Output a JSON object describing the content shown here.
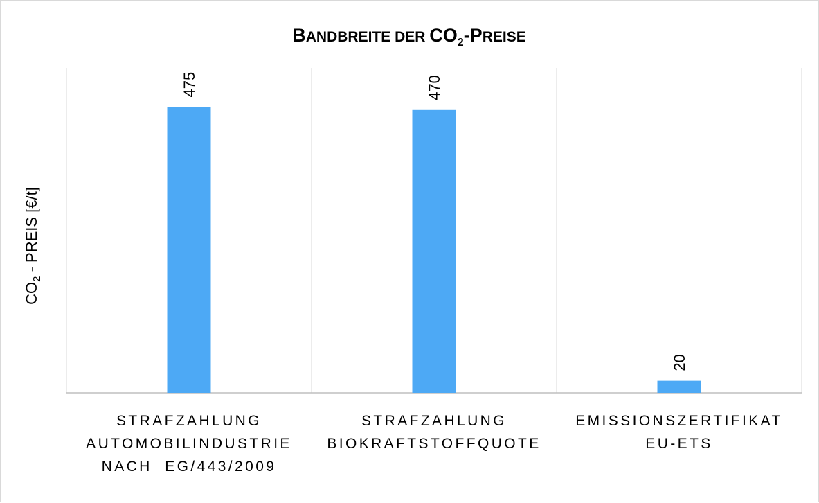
{
  "chart_data": {
    "type": "bar",
    "title": "Bandbreite der CO2-Preise",
    "title_parts": {
      "a_big": "B",
      "a_small": "ANDBREITE DER ",
      "b_big": "CO",
      "b_sub": "2",
      "c_big": "-P",
      "c_small": "REISE"
    },
    "ylabel": "CO2 - PREIS [€/t]",
    "ylabel_parts": {
      "a": "CO",
      "sub": "2",
      "b": " - PREIS [€/t]"
    },
    "categories": [
      "Strafzahlung Automobilindustrie nach EG/443/2009",
      "Strafzahlung Biokraftstoffquote",
      "Emissionszertifikat EU-ETS"
    ],
    "category_lines": [
      [
        "STRAFZAHLUNG",
        "AUTOMOBILINDUSTRIE",
        "NACH  EG/443/2009"
      ],
      [
        "STRAFZAHLUNG",
        "BIOKRAFTSTOFFQUOTE"
      ],
      [
        "EMISSIONSZERTIFIKAT",
        "EU-ETS"
      ]
    ],
    "values": [
      475,
      470,
      20
    ],
    "data_labels": [
      "475",
      "470",
      "20"
    ],
    "ylim": [
      0,
      540
    ],
    "grid": "vertical category separators",
    "legend": "none",
    "bar_color": "#4da9f5"
  }
}
